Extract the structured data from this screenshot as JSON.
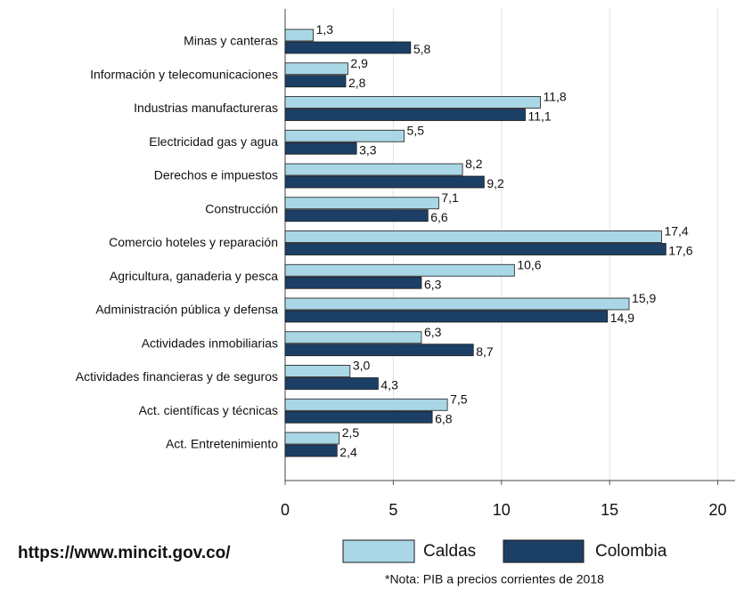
{
  "chart_data": {
    "type": "hbar",
    "categories": [
      "Minas y canteras",
      "Información y telecomunicaciones",
      "Industrias manufactureras",
      "Electricidad gas y agua",
      "Derechos e impuestos",
      "Construcción",
      "Comercio hoteles y reparación",
      "Agricultura, ganaderia y pesca",
      "Administración pública y defensa",
      "Actividades inmobiliarias",
      "Actividades financieras y de seguros",
      "Act. científicas y técnicas",
      "Act. Entretenimiento"
    ],
    "series": [
      {
        "name": "Caldas",
        "color": "#a9d7e6",
        "values": [
          1.3,
          2.9,
          11.8,
          5.5,
          8.2,
          7.1,
          17.4,
          10.6,
          15.9,
          6.3,
          3.0,
          7.5,
          2.5
        ],
        "value_labels": [
          "1,3",
          "2,9",
          "11,8",
          "5,5",
          "8,2",
          "7,1",
          "17,4",
          "10,6",
          "15,9",
          "6,3",
          "3,0",
          "7,5",
          "2,5"
        ]
      },
      {
        "name": "Colombia",
        "color": "#1c3f66",
        "values": [
          5.8,
          2.8,
          11.1,
          3.3,
          9.2,
          6.6,
          17.6,
          6.3,
          14.9,
          8.7,
          4.3,
          6.8,
          2.4
        ],
        "value_labels": [
          "5,8",
          "2,8",
          "11,1",
          "3,3",
          "9,2",
          "6,6",
          "17,6",
          "6,3",
          "14,9",
          "8,7",
          "4,3",
          "6,8",
          "2,4"
        ]
      }
    ],
    "xlim": [
      0,
      20.8
    ],
    "xticks": [
      0,
      5,
      10,
      15,
      20
    ],
    "grid": true,
    "legend": "bottom",
    "source": "https://www.mincit.gov.co/",
    "note": "*Nota: PIB a precios corrientes de 2018"
  }
}
